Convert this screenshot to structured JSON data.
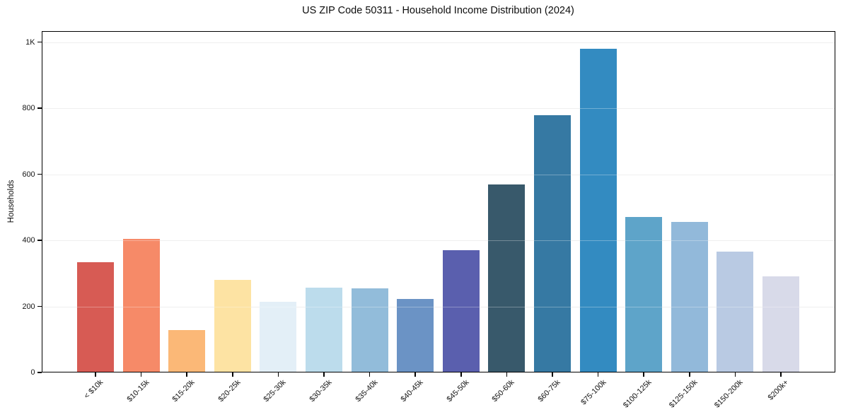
{
  "chart_data": {
    "type": "bar",
    "title": "US ZIP Code 50311 - Household Income Distribution (2024)",
    "xlabel": "",
    "ylabel": "Households",
    "categories": [
      "< $10k",
      "$10-15k",
      "$15-20k",
      "$20-25k",
      "$25-30k",
      "$30-35k",
      "$35-40k",
      "$40-45k",
      "$45-50k",
      "$50-60k",
      "$60-75k",
      "$75-100k",
      "$100-125k",
      "$125-150k",
      "$150-200k",
      "$200k+"
    ],
    "values": [
      334,
      405,
      129,
      281,
      214,
      256,
      255,
      223,
      369,
      568,
      779,
      980,
      471,
      455,
      366,
      290
    ],
    "bar_colors": [
      "#d75b54",
      "#f68a68",
      "#fbb877",
      "#fde3a3",
      "#e3eff7",
      "#bcdcec",
      "#92bcda",
      "#6b93c5",
      "#5a5fae",
      "#38596b",
      "#3679a3",
      "#338bc1",
      "#5ea4c9",
      "#92b9da",
      "#b9cae3",
      "#d8dae9"
    ],
    "yticks": [
      {
        "label": "0",
        "value": 0
      },
      {
        "label": "200",
        "value": 200
      },
      {
        "label": "400",
        "value": 400
      },
      {
        "label": "600",
        "value": 600
      },
      {
        "label": "800",
        "value": 800
      },
      {
        "label": "1K",
        "value": 1000
      }
    ],
    "ylim": [
      0,
      1033
    ],
    "grid": "horizontal",
    "legend": "none",
    "background_color": "#ffffff",
    "spine_color": "#000000"
  }
}
